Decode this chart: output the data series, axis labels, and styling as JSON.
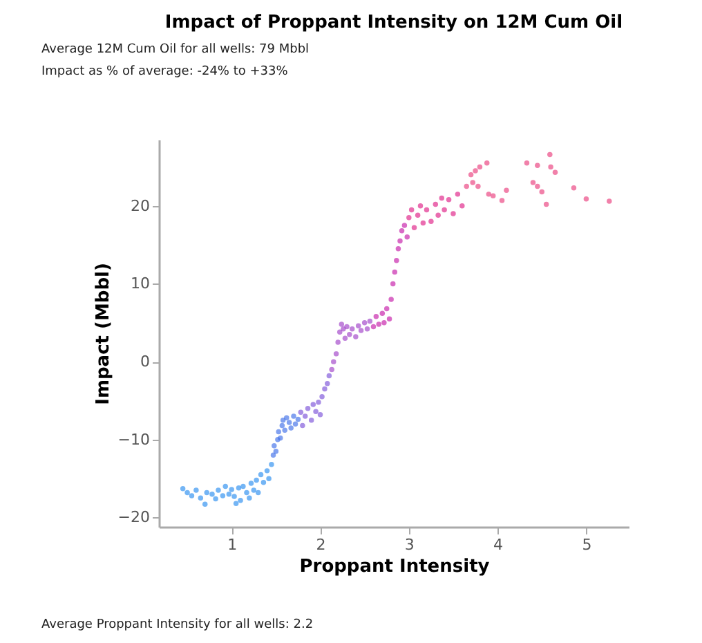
{
  "chart_data": {
    "type": "scatter",
    "title": "Impact of Proppant Intensity on 12M Cum Oil",
    "xlabel": "Proppant Intensity",
    "ylabel": "Impact (Mbbl)",
    "annotations": [
      "Average 12M Cum Oil for all wells: 79 Mbbl",
      "Impact as % of average: -24% to +33%",
      "Average Proppant Intensity for all wells: 2.2"
    ],
    "xlim": [
      0.18,
      5.48
    ],
    "ylim": [
      -21.2,
      28.5
    ],
    "xticks": [
      1,
      2,
      3,
      4,
      5
    ],
    "yticks": [
      -20,
      -10,
      0,
      10,
      20
    ],
    "marker": "circle",
    "series": [
      {
        "color": "#2a8ef0",
        "x": [
          0.45,
          0.5,
          0.55,
          0.6,
          0.65,
          0.7,
          0.72,
          0.78,
          0.82,
          0.85,
          0.9,
          0.93,
          0.97,
          1.0,
          1.03,
          1.05,
          1.08,
          1.1,
          1.13,
          1.17,
          1.2,
          1.22,
          1.25,
          1.28,
          1.3,
          1.33,
          1.36,
          1.4,
          1.42,
          1.45
        ],
        "values": [
          -16.3,
          -16.8,
          -17.2,
          -16.5,
          -17.5,
          -18.3,
          -16.8,
          -17.0,
          -17.6,
          -16.5,
          -17.2,
          -16.0,
          -17.0,
          -16.4,
          -17.3,
          -18.2,
          -16.2,
          -17.8,
          -16.0,
          -16.8,
          -17.5,
          -15.6,
          -16.5,
          -15.2,
          -16.8,
          -14.5,
          -15.5,
          -14.0,
          -15.0,
          -13.2
        ]
      },
      {
        "color": "#3f6fe8",
        "x": [
          1.47,
          1.48,
          1.5,
          1.52,
          1.53,
          1.55,
          1.57,
          1.58,
          1.6,
          1.62,
          1.65,
          1.67,
          1.7,
          1.72,
          1.75
        ],
        "values": [
          -12.0,
          -10.8,
          -11.5,
          -10.0,
          -9.0,
          -9.8,
          -8.2,
          -7.5,
          -8.8,
          -7.2,
          -7.8,
          -8.5,
          -7.0,
          -8.0,
          -7.4
        ]
      },
      {
        "color": "#7b52d8",
        "x": [
          1.78,
          1.8,
          1.83,
          1.86,
          1.9,
          1.92,
          1.95,
          1.98,
          2.0,
          2.02,
          2.05,
          2.08,
          2.1
        ],
        "values": [
          -6.5,
          -8.2,
          -7.0,
          -6.0,
          -7.5,
          -5.5,
          -6.4,
          -5.2,
          -6.8,
          -4.5,
          -3.5,
          -2.8,
          -1.8
        ]
      },
      {
        "color": "#a040c8",
        "x": [
          2.13,
          2.15,
          2.18,
          2.2,
          2.22,
          2.24,
          2.26,
          2.28,
          2.3,
          2.33,
          2.36,
          2.4,
          2.43,
          2.46,
          2.5,
          2.53,
          2.56
        ],
        "values": [
          -1.0,
          0.0,
          1.0,
          2.5,
          3.8,
          4.8,
          4.2,
          3.0,
          4.5,
          3.5,
          4.2,
          3.2,
          4.6,
          4.0,
          5.0,
          4.2,
          5.2
        ]
      },
      {
        "color": "#c41aa8",
        "x": [
          2.6,
          2.63,
          2.66,
          2.7,
          2.72,
          2.75,
          2.78,
          2.8,
          2.82,
          2.84,
          2.86,
          2.88,
          2.9,
          2.92,
          2.95,
          2.98
        ],
        "values": [
          4.5,
          5.8,
          4.8,
          6.2,
          5.0,
          6.8,
          5.5,
          8.0,
          10.0,
          11.5,
          13.0,
          14.5,
          15.5,
          16.8,
          17.5,
          16.0
        ]
      },
      {
        "color": "#de1f86",
        "x": [
          3.0,
          3.03,
          3.06,
          3.1,
          3.13,
          3.16,
          3.2,
          3.25,
          3.3,
          3.33,
          3.37,
          3.4,
          3.45,
          3.5,
          3.55,
          3.6
        ],
        "values": [
          18.5,
          19.5,
          17.2,
          18.8,
          20.0,
          17.8,
          19.5,
          18.0,
          20.2,
          18.8,
          21.0,
          19.5,
          20.8,
          19.0,
          21.5,
          20.0
        ]
      },
      {
        "color": "#ea3d7c",
        "x": [
          3.65,
          3.7,
          3.75,
          3.8,
          3.88,
          3.72,
          3.78,
          3.9,
          3.95,
          4.05,
          4.1,
          4.33,
          4.4,
          4.45,
          4.5,
          4.55,
          4.45,
          4.59,
          4.6,
          4.65,
          4.86,
          5.0,
          5.26
        ],
        "values": [
          22.5,
          24.0,
          24.5,
          25.0,
          25.5,
          23.0,
          22.5,
          21.5,
          21.3,
          20.7,
          22.0,
          25.5,
          23.0,
          22.5,
          21.8,
          20.2,
          25.2,
          26.6,
          25.0,
          24.3,
          22.3,
          20.9,
          20.6
        ]
      }
    ]
  }
}
